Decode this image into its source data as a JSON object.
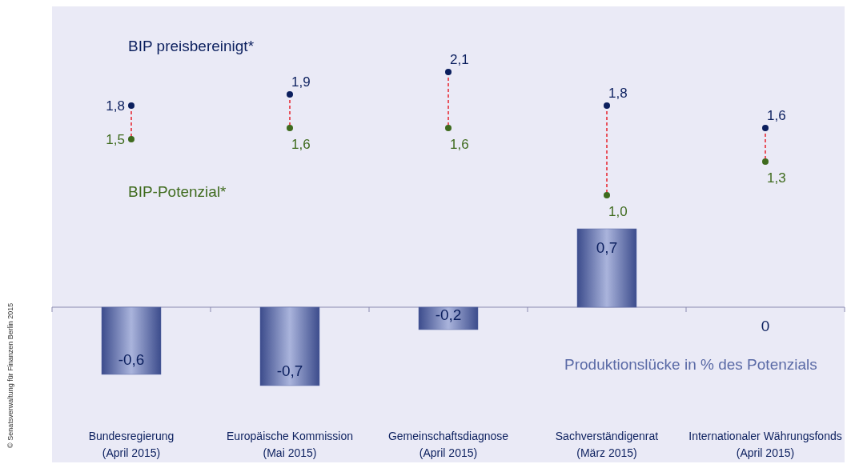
{
  "chart_data": {
    "type": "bar",
    "categories": [
      "Bundesregierung\n(April 2015)",
      "Europäische Kommission\n(Mai 2015)",
      "Gemeinschaftsdiagnose\n(April 2015)",
      "Sachverständigenrat\n(März 2015)",
      "Internationaler Währungsfonds\n(April 2015)"
    ],
    "series": [
      {
        "name": "Produktionslücke in % des Potenzials",
        "color": "#5a6aa6",
        "values": [
          -0.6,
          -0.7,
          -0.2,
          0.7,
          0
        ],
        "value_labels": [
          "-0,6",
          "-0,7",
          "-0,2",
          "0,7",
          "0"
        ]
      },
      {
        "name": "BIP preisbereinigt*",
        "type": "scatter",
        "color": "#0b1f5e",
        "values": [
          1.8,
          1.9,
          2.1,
          1.8,
          1.6
        ],
        "value_labels": [
          "1,8",
          "1,9",
          "2,1",
          "1,8",
          "1,6"
        ]
      },
      {
        "name": "BIP-Potenzial*",
        "type": "scatter",
        "color": "#3f6b1e",
        "values": [
          1.5,
          1.6,
          1.6,
          1.0,
          1.3
        ],
        "value_labels": [
          "1,5",
          "1,6",
          "1,6",
          "1,0",
          "1,3"
        ]
      }
    ],
    "tick_labels": "x",
    "marker": "circle",
    "legend": false,
    "annotations": [
      "© Senatsverwaltung für Finanzen Berlin 2015"
    ]
  }
}
